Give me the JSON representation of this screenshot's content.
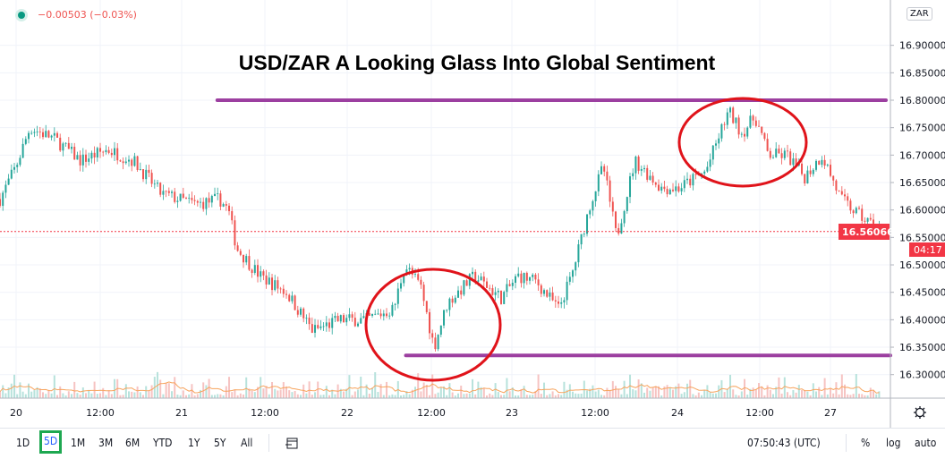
{
  "legend": {
    "change": "−0.00503 (−0.03%)",
    "status_color": "#089981"
  },
  "currency_badge": "ZAR",
  "bottom_bar": {
    "ranges": [
      "1D",
      "5D",
      "1M",
      "3M",
      "6M",
      "YTD",
      "1Y",
      "5Y",
      "All"
    ],
    "selected_range": "5D",
    "clock": "07:50:43 (UTC)",
    "percent": "%",
    "log": "log",
    "auto": "auto",
    "date_range_icon": "calendar-goto-icon",
    "settings_icon": "gear-icon"
  },
  "chart_data": {
    "type": "candlestick",
    "title": "USD/ZAR A Looking Glass Into Global Sentiment",
    "x_tick_labels": [
      "20",
      "12:00",
      "21",
      "12:00",
      "22",
      "12:00",
      "23",
      "12:00",
      "24",
      "12:00",
      "27"
    ],
    "y_tick_labels": [
      "16.30000",
      "16.35000",
      "16.40000",
      "16.45000",
      "16.50000",
      "16.55000",
      "16.60000",
      "16.65000",
      "16.70000",
      "16.75000",
      "16.80000",
      "16.85000",
      "16.90000"
    ],
    "ylim": [
      16.27,
      16.97
    ],
    "last_price": "16.56066",
    "last_price_value": 16.56066,
    "countdown": "04:17",
    "grid": true,
    "colors": {
      "up": "#26a69a",
      "down": "#ef5350",
      "annotation_line": "#9c3fa0",
      "circle": "#e0131a",
      "last_price": "#f23645"
    },
    "price_path": [
      [
        "19 21:40",
        16.62
      ],
      [
        "20 00:00",
        16.68
      ],
      [
        "20 02:00",
        16.75
      ],
      [
        "20 05:30",
        16.73
      ],
      [
        "20 09:20",
        16.69
      ],
      [
        "20 13:15",
        16.71
      ],
      [
        "20 17:00",
        16.69
      ],
      [
        "20 21:00",
        16.63
      ],
      [
        "21 02:10",
        16.61
      ],
      [
        "21 05:30",
        16.62
      ],
      [
        "21 06:45",
        16.6
      ],
      [
        "21 08:00",
        16.53
      ],
      [
        "21 11:20",
        16.48
      ],
      [
        "21 15:10",
        16.45
      ],
      [
        "21 19:00",
        16.38
      ],
      [
        "21 23:00",
        16.4
      ],
      [
        "22 02:50",
        16.4
      ],
      [
        "22 06:45",
        16.42
      ],
      [
        "22 08:20",
        16.5
      ],
      [
        "22 10:40",
        16.46
      ],
      [
        "22 12:35",
        16.35
      ],
      [
        "22 14:30",
        16.43
      ],
      [
        "22 18:25",
        16.48
      ],
      [
        "22 22:20",
        16.44
      ],
      [
        "23 00:55",
        16.48
      ],
      [
        "23 03:30",
        16.47
      ],
      [
        "23 06:45",
        16.42
      ],
      [
        "23 08:40",
        16.48
      ],
      [
        "23 11:20",
        16.61
      ],
      [
        "23 13:15",
        16.68
      ],
      [
        "23 15:10",
        16.55
      ],
      [
        "23 17:50",
        16.69
      ],
      [
        "23 21:40",
        16.64
      ],
      [
        "24 00:15",
        16.64
      ],
      [
        "24 04:05",
        16.67
      ],
      [
        "24 07:25",
        16.78
      ],
      [
        "24 09:20",
        16.74
      ],
      [
        "24 11:15",
        16.77
      ],
      [
        "24 13:10",
        16.7
      ],
      [
        "24 15:50",
        16.7
      ],
      [
        "24 18:25",
        16.66
      ],
      [
        "24 21:00",
        16.7
      ],
      [
        "27 01:30",
        16.62
      ],
      [
        "27 04:10",
        16.59
      ],
      [
        "27 07:25",
        16.56
      ]
    ],
    "annotations": {
      "resistance_level": 16.8,
      "support_level": 16.335
    }
  }
}
